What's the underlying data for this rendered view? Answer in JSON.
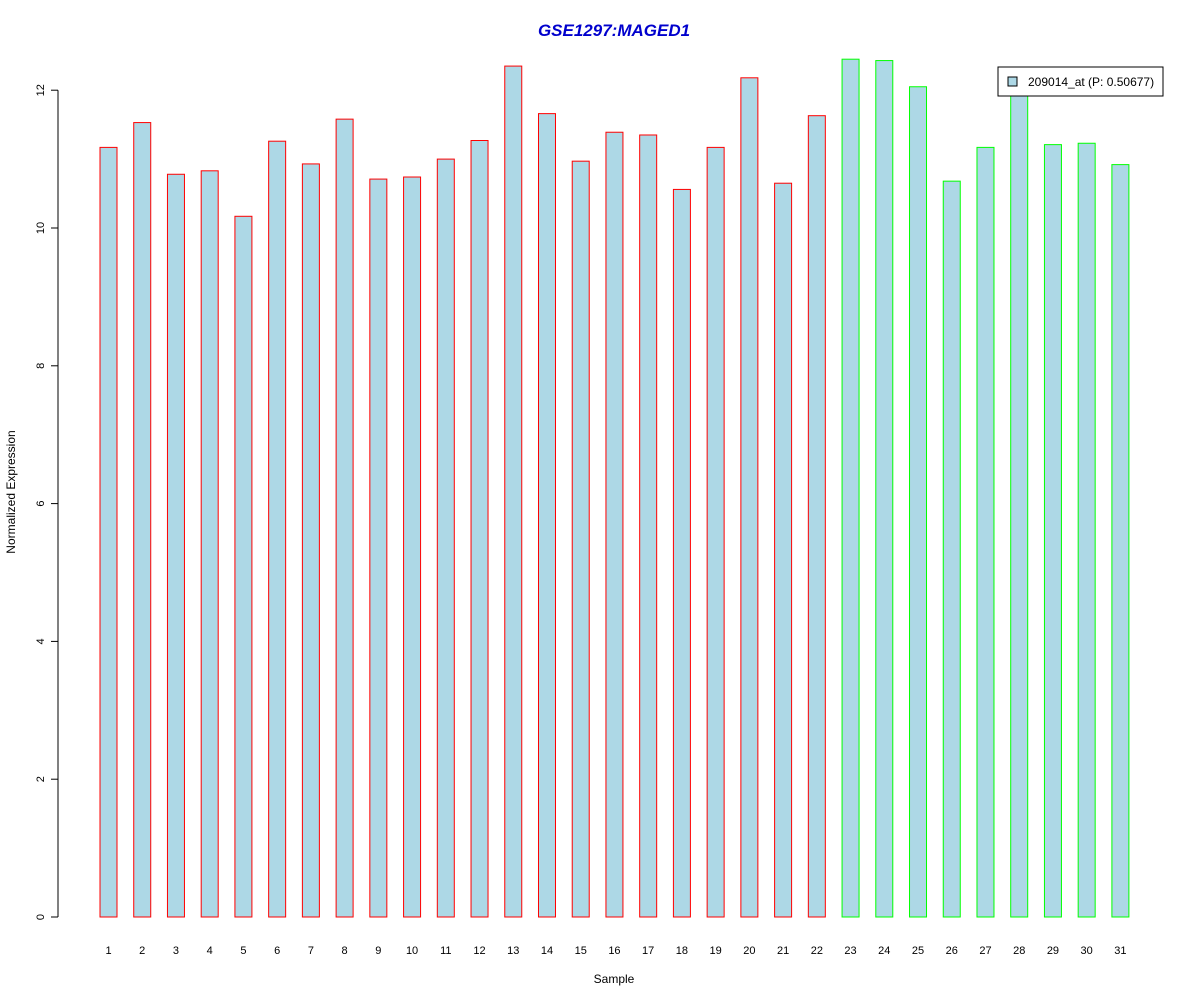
{
  "chart_data": {
    "type": "bar",
    "title": "GSE1297:MAGED1",
    "xlabel": "Sample",
    "ylabel": "Normalized Expression",
    "ylim": [
      0,
      12.5
    ],
    "yticks": [
      "0",
      "2",
      "4",
      "6",
      "8",
      "10",
      "12"
    ],
    "categories": [
      "1",
      "2",
      "3",
      "4",
      "5",
      "6",
      "7",
      "8",
      "9",
      "10",
      "11",
      "12",
      "13",
      "14",
      "15",
      "16",
      "17",
      "18",
      "19",
      "20",
      "21",
      "22",
      "23",
      "24",
      "25",
      "26",
      "27",
      "28",
      "29",
      "30",
      "31"
    ],
    "values": [
      11.17,
      11.53,
      10.78,
      10.83,
      10.17,
      11.26,
      10.93,
      11.58,
      10.71,
      10.74,
      11.0,
      11.27,
      12.35,
      11.66,
      10.97,
      11.39,
      11.35,
      10.56,
      11.17,
      12.18,
      10.65,
      11.63,
      12.45,
      12.43,
      12.05,
      10.68,
      11.17,
      12.0,
      11.21,
      11.23,
      10.92
    ],
    "groups": [
      "red",
      "red",
      "red",
      "red",
      "red",
      "red",
      "red",
      "red",
      "red",
      "red",
      "red",
      "red",
      "red",
      "red",
      "red",
      "red",
      "red",
      "red",
      "red",
      "red",
      "red",
      "red",
      "green",
      "green",
      "green",
      "green",
      "green",
      "green",
      "green",
      "green",
      "green"
    ],
    "legend": {
      "label": "209014_at (P: 0.50677)",
      "position": "top-right"
    },
    "colors": {
      "fill": "#add8e6",
      "red_border": "#ff0000",
      "green_border": "#00ff00",
      "title": "#0000cd"
    },
    "grid": false
  }
}
